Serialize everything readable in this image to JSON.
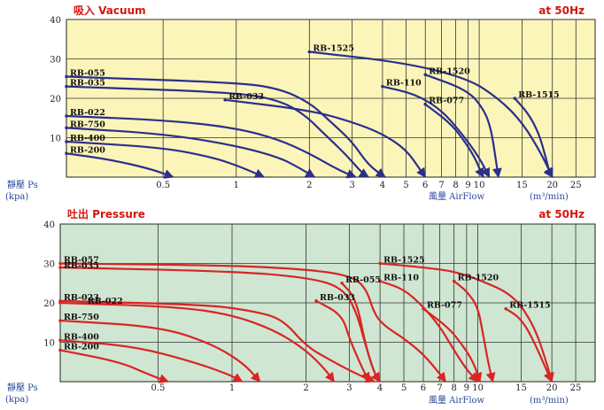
{
  "chart_data": [
    {
      "type": "line",
      "title": "吸入 Vacuum",
      "subtitle": "at 50Hz",
      "ylabel": "靜壓 Ps",
      "yunit": "(kpa)",
      "xlabel": "風量 AirFlow",
      "xunit": "(m³/min)",
      "x_scale": "log",
      "xlim": [
        0.2,
        30
      ],
      "ylim": [
        0,
        40
      ],
      "x_ticks": [
        {
          "v": 0.5,
          "label": "0.5"
        },
        {
          "v": 1,
          "label": "1"
        },
        {
          "v": 2,
          "label": "2"
        },
        {
          "v": 3,
          "label": "3"
        },
        {
          "v": 4,
          "label": "4"
        },
        {
          "v": 5,
          "label": "5"
        },
        {
          "v": 6,
          "label": "6"
        },
        {
          "v": 7,
          "label": "7"
        },
        {
          "v": 8,
          "label": "8"
        },
        {
          "v": 9,
          "label": "9"
        },
        {
          "v": 10,
          "label": "10"
        },
        {
          "v": 15,
          "label": "15"
        },
        {
          "v": 20,
          "label": "20"
        },
        {
          "v": 25,
          "label": "25"
        }
      ],
      "y_ticks": [
        {
          "v": 10,
          "label": "10"
        },
        {
          "v": 20,
          "label": "20"
        },
        {
          "v": 30,
          "label": "30"
        },
        {
          "v": 40,
          "label": "40"
        }
      ],
      "background": "#fbf5b9",
      "line_color": "#2b2f8c",
      "title_color": "#d4160e",
      "series": [
        {
          "name": "RB-055",
          "points": [
            [
              0.2,
              25.5
            ],
            [
              1,
              24
            ],
            [
              1.5,
              22.5
            ],
            [
              2,
              19
            ],
            [
              2.4,
              14.5
            ],
            [
              3,
              9
            ],
            [
              3.5,
              3
            ],
            [
              4.1,
              0
            ]
          ]
        },
        {
          "name": "RB-035",
          "points": [
            [
              0.2,
              23
            ],
            [
              1,
              21.5
            ],
            [
              1.5,
              19.5
            ],
            [
              1.9,
              16
            ],
            [
              2.3,
              11
            ],
            [
              2.8,
              6
            ],
            [
              3.3,
              1
            ],
            [
              3.5,
              0
            ]
          ]
        },
        {
          "name": "RB-033",
          "points": [
            [
              0.9,
              19.6
            ],
            [
              2,
              17
            ],
            [
              3,
              14
            ],
            [
              4,
              11
            ],
            [
              5,
              7
            ],
            [
              5.7,
              2
            ],
            [
              6,
              0
            ]
          ]
        },
        {
          "name": "RB-022",
          "points": [
            [
              0.2,
              15.5
            ],
            [
              0.5,
              14.5
            ],
            [
              1,
              12.5
            ],
            [
              1.5,
              9.5
            ],
            [
              2,
              6
            ],
            [
              2.6,
              2
            ],
            [
              3.1,
              0
            ]
          ]
        },
        {
          "name": "RB-750",
          "points": [
            [
              0.2,
              12.5
            ],
            [
              0.5,
              11
            ],
            [
              1,
              8
            ],
            [
              1.5,
              5
            ],
            [
              1.8,
              2.5
            ],
            [
              2.1,
              0
            ]
          ]
        },
        {
          "name": "RB-400",
          "points": [
            [
              0.2,
              9
            ],
            [
              0.5,
              7.5
            ],
            [
              0.8,
              5
            ],
            [
              1,
              3
            ],
            [
              1.2,
              1
            ],
            [
              1.3,
              0
            ]
          ]
        },
        {
          "name": "RB-200",
          "points": [
            [
              0.2,
              6
            ],
            [
              0.3,
              4.5
            ],
            [
              0.45,
              2
            ],
            [
              0.55,
              0
            ]
          ]
        },
        {
          "name": "RB-1525",
          "points": [
            [
              2,
              31.8
            ],
            [
              5,
              29
            ],
            [
              9,
              25
            ],
            [
              12,
              20
            ],
            [
              15,
              14
            ],
            [
              18,
              6
            ],
            [
              20,
              0
            ]
          ]
        },
        {
          "name": "RB-1520",
          "points": [
            [
              6,
              26
            ],
            [
              9,
              22
            ],
            [
              10.5,
              17
            ],
            [
              11.2,
              12
            ],
            [
              11.6,
              6
            ],
            [
              12,
              0
            ]
          ]
        },
        {
          "name": "RB-110",
          "points": [
            [
              4,
              23
            ],
            [
              5.5,
              21
            ],
            [
              7,
              17
            ],
            [
              8.5,
              11
            ],
            [
              10,
              5
            ],
            [
              11,
              0
            ]
          ]
        },
        {
          "name": "RB-077",
          "points": [
            [
              6,
              18.5
            ],
            [
              7.5,
              14
            ],
            [
              8.5,
              10
            ],
            [
              9.6,
              5
            ],
            [
              10.2,
              1
            ],
            [
              10.4,
              0
            ]
          ]
        },
        {
          "name": "RB-1515",
          "points": [
            [
              14,
              20
            ],
            [
              16,
              16
            ],
            [
              17.6,
              11
            ],
            [
              18.6,
              6
            ],
            [
              19.5,
              1
            ],
            [
              20,
              0
            ]
          ]
        }
      ],
      "label_anchors": [
        {
          "name": "RB-055",
          "x": 0.2,
          "y": 25.5
        },
        {
          "name": "RB-035",
          "x": 0.2,
          "y": 23
        },
        {
          "name": "RB-033",
          "x": 0.9,
          "y": 19.6
        },
        {
          "name": "RB-022",
          "x": 0.2,
          "y": 15.5
        },
        {
          "name": "RB-750",
          "x": 0.2,
          "y": 12.5
        },
        {
          "name": "RB-400",
          "x": 0.2,
          "y": 9
        },
        {
          "name": "RB-200",
          "x": 0.2,
          "y": 6
        },
        {
          "name": "RB-1525",
          "x": 2,
          "y": 31.8
        },
        {
          "name": "RB-1520",
          "x": 6,
          "y": 26
        },
        {
          "name": "RB-110",
          "x": 4,
          "y": 23
        },
        {
          "name": "RB-077",
          "x": 6,
          "y": 18.5
        },
        {
          "name": "RB-1515",
          "x": 14,
          "y": 20
        }
      ]
    },
    {
      "type": "line",
      "title": "吐出 Pressure",
      "subtitle": "at 50Hz",
      "ylabel": "靜壓 Ps",
      "yunit": "(kpa)",
      "xlabel": "風量 AirFlow",
      "xunit": "(m³/min)",
      "x_scale": "log",
      "xlim": [
        0.2,
        30
      ],
      "ylim": [
        0,
        40
      ],
      "x_ticks": [
        {
          "v": 0.5,
          "label": "0.5"
        },
        {
          "v": 1,
          "label": "1"
        },
        {
          "v": 2,
          "label": "2"
        },
        {
          "v": 3,
          "label": "3"
        },
        {
          "v": 4,
          "label": "4"
        },
        {
          "v": 5,
          "label": "5"
        },
        {
          "v": 6,
          "label": "6"
        },
        {
          "v": 7,
          "label": "7"
        },
        {
          "v": 8,
          "label": "8"
        },
        {
          "v": 9,
          "label": "9"
        },
        {
          "v": 10,
          "label": "10"
        },
        {
          "v": 15,
          "label": "15"
        },
        {
          "v": 20,
          "label": "20"
        },
        {
          "v": 25,
          "label": "25"
        }
      ],
      "y_ticks": [
        {
          "v": 10,
          "label": "10"
        },
        {
          "v": 20,
          "label": "20"
        },
        {
          "v": 30,
          "label": "30"
        },
        {
          "v": 40,
          "label": "40"
        }
      ],
      "background": "#cfe6d2",
      "line_color": "#d82525",
      "title_color": "#d4160e",
      "series": [
        {
          "name": "RB-057",
          "points": [
            [
              0.2,
              30
            ],
            [
              1,
              29.5
            ],
            [
              2,
              28.5
            ],
            [
              3,
              27
            ],
            [
              3.5,
              24
            ],
            [
              3.8,
              17
            ],
            [
              4.2,
              14
            ],
            [
              5,
              11
            ],
            [
              6,
              7
            ],
            [
              7,
              2
            ],
            [
              7.4,
              0
            ]
          ]
        },
        {
          "name": "RB-035",
          "points": [
            [
              0.2,
              29
            ],
            [
              1,
              28
            ],
            [
              2,
              26.5
            ],
            [
              2.8,
              24
            ],
            [
              3.2,
              18
            ],
            [
              3.5,
              9
            ],
            [
              3.8,
              2
            ],
            [
              4,
              0
            ]
          ]
        },
        {
          "name": "RB-055",
          "points": [
            [
              2.8,
              25
            ],
            [
              3.2,
              21
            ],
            [
              3.5,
              9
            ],
            [
              3.8,
              2
            ],
            [
              4,
              0
            ]
          ]
        },
        {
          "name": "RB-023",
          "points": [
            [
              0.2,
              20.5
            ],
            [
              0.8,
              19.5
            ],
            [
              1.2,
              18
            ],
            [
              1.6,
              16
            ],
            [
              2,
              9
            ],
            [
              2.5,
              5.5
            ],
            [
              3.2,
              2
            ],
            [
              3.8,
              0
            ]
          ]
        },
        {
          "name": "RB-022",
          "points": [
            [
              0.2,
              20
            ],
            [
              0.6,
              19
            ],
            [
              1,
              17
            ],
            [
              1.5,
              13
            ],
            [
              2,
              8
            ],
            [
              2.4,
              3
            ],
            [
              2.6,
              0
            ]
          ]
        },
        {
          "name": "RB-033",
          "points": [
            [
              2.2,
              20.5
            ],
            [
              2.8,
              17
            ],
            [
              3,
              11
            ],
            [
              3.3,
              5
            ],
            [
              3.6,
              0
            ]
          ]
        },
        {
          "name": "RB-750",
          "points": [
            [
              0.2,
              15.5
            ],
            [
              0.5,
              14
            ],
            [
              0.8,
              10
            ],
            [
              1.1,
              5
            ],
            [
              1.3,
              0
            ]
          ]
        },
        {
          "name": "RB-400",
          "points": [
            [
              0.2,
              10.5
            ],
            [
              0.4,
              9
            ],
            [
              0.7,
              5
            ],
            [
              1,
              1.5
            ],
            [
              1.1,
              0
            ]
          ]
        },
        {
          "name": "RB-200",
          "points": [
            [
              0.2,
              8
            ],
            [
              0.35,
              5
            ],
            [
              0.45,
              2
            ],
            [
              0.55,
              0
            ]
          ]
        },
        {
          "name": "RB-1525",
          "points": [
            [
              4,
              30
            ],
            [
              6,
              29
            ],
            [
              8,
              28
            ],
            [
              10,
              26
            ],
            [
              14,
              22
            ],
            [
              17,
              14
            ],
            [
              19,
              5
            ],
            [
              20,
              0
            ]
          ]
        },
        {
          "name": "RB-1520",
          "points": [
            [
              8,
              25.5
            ],
            [
              9,
              23
            ],
            [
              10,
              19
            ],
            [
              10.5,
              12
            ],
            [
              11,
              5
            ],
            [
              11.5,
              0
            ]
          ]
        },
        {
          "name": "RB-110",
          "points": [
            [
              4,
              25.5
            ],
            [
              5,
              23.5
            ],
            [
              6,
              19
            ],
            [
              7,
              14
            ],
            [
              8,
              8
            ],
            [
              9,
              3
            ],
            [
              10,
              0
            ]
          ]
        },
        {
          "name": "RB-077",
          "points": [
            [
              6,
              18.5
            ],
            [
              7.5,
              14
            ],
            [
              8.5,
              10
            ],
            [
              9.6,
              5
            ],
            [
              10.2,
              0
            ]
          ]
        },
        {
          "name": "RB-1515",
          "points": [
            [
              13,
              18.5
            ],
            [
              15,
              16
            ],
            [
              17,
              10
            ],
            [
              19,
              3
            ],
            [
              20,
              0
            ]
          ]
        }
      ],
      "label_anchors": [
        {
          "name": "RB-057",
          "x": 0.2,
          "y": 30
        },
        {
          "name": "RB-035",
          "x": 0.2,
          "y": 28.5
        },
        {
          "name": "RB-055",
          "x": 2.8,
          "y": 25
        },
        {
          "name": "RB-023",
          "x": 0.2,
          "y": 20.5
        },
        {
          "name": "RB-022",
          "x": 0.25,
          "y": 19.5
        },
        {
          "name": "RB-033",
          "x": 2.2,
          "y": 20.5
        },
        {
          "name": "RB-750",
          "x": 0.2,
          "y": 15.5
        },
        {
          "name": "RB-400",
          "x": 0.2,
          "y": 10.5
        },
        {
          "name": "RB-200",
          "x": 0.2,
          "y": 8
        },
        {
          "name": "RB-1525",
          "x": 4,
          "y": 30
        },
        {
          "name": "RB-1520",
          "x": 8,
          "y": 25.5
        },
        {
          "name": "RB-110",
          "x": 4,
          "y": 25.5
        },
        {
          "name": "RB-077",
          "x": 6,
          "y": 18.5
        },
        {
          "name": "RB-1515",
          "x": 13,
          "y": 18.5
        }
      ]
    }
  ]
}
